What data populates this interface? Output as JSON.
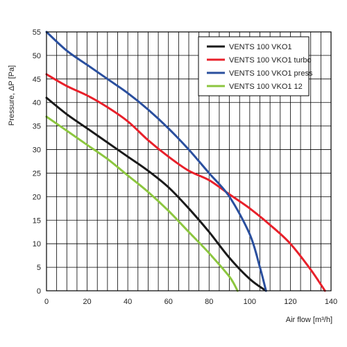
{
  "chart_data": {
    "type": "line",
    "title": "",
    "xlabel": "Air flow [m³/h]",
    "ylabel": "Pressure, ΔP [Pa]",
    "xlim": [
      0,
      140
    ],
    "ylim": [
      0,
      55
    ],
    "x_ticks": [
      0,
      20,
      40,
      60,
      80,
      100,
      120,
      140
    ],
    "y_ticks": [
      0,
      5,
      10,
      15,
      20,
      25,
      30,
      35,
      40,
      45,
      50,
      55
    ],
    "grid": true,
    "legend_position": "top-right",
    "series": [
      {
        "name": "VENTS 100 VKO1",
        "color": "#1a1a1a",
        "points": [
          [
            0,
            41
          ],
          [
            10,
            37.5
          ],
          [
            20,
            34.5
          ],
          [
            30,
            31.5
          ],
          [
            40,
            28.5
          ],
          [
            50,
            25.5
          ],
          [
            60,
            22
          ],
          [
            70,
            17.5
          ],
          [
            80,
            12.5
          ],
          [
            90,
            7
          ],
          [
            100,
            2.5
          ],
          [
            108,
            0
          ]
        ]
      },
      {
        "name": "VENTS 100 VKO1 turbo",
        "color": "#e8202a",
        "points": [
          [
            0,
            46
          ],
          [
            10,
            43.5
          ],
          [
            20,
            41.5
          ],
          [
            30,
            39
          ],
          [
            40,
            36
          ],
          [
            50,
            32
          ],
          [
            60,
            28.5
          ],
          [
            70,
            25.5
          ],
          [
            80,
            23.5
          ],
          [
            90,
            20.5
          ],
          [
            100,
            17.5
          ],
          [
            110,
            14
          ],
          [
            120,
            10
          ],
          [
            130,
            4.5
          ],
          [
            137,
            0
          ]
        ]
      },
      {
        "name": "VENTS 100 VKO1 press",
        "color": "#2a4f9e",
        "points": [
          [
            0,
            55
          ],
          [
            10,
            51
          ],
          [
            20,
            48
          ],
          [
            30,
            45
          ],
          [
            40,
            42
          ],
          [
            50,
            38.5
          ],
          [
            60,
            34.5
          ],
          [
            70,
            30
          ],
          [
            80,
            25
          ],
          [
            90,
            20
          ],
          [
            100,
            12
          ],
          [
            105,
            5
          ],
          [
            108,
            0
          ]
        ]
      },
      {
        "name": "VENTS 100 VKO1 12",
        "color": "#8cc63f",
        "points": [
          [
            0,
            37
          ],
          [
            10,
            34
          ],
          [
            20,
            31
          ],
          [
            30,
            28
          ],
          [
            40,
            24.5
          ],
          [
            50,
            21
          ],
          [
            60,
            17
          ],
          [
            70,
            12.5
          ],
          [
            80,
            8
          ],
          [
            90,
            3
          ],
          [
            94,
            0
          ]
        ]
      }
    ]
  }
}
